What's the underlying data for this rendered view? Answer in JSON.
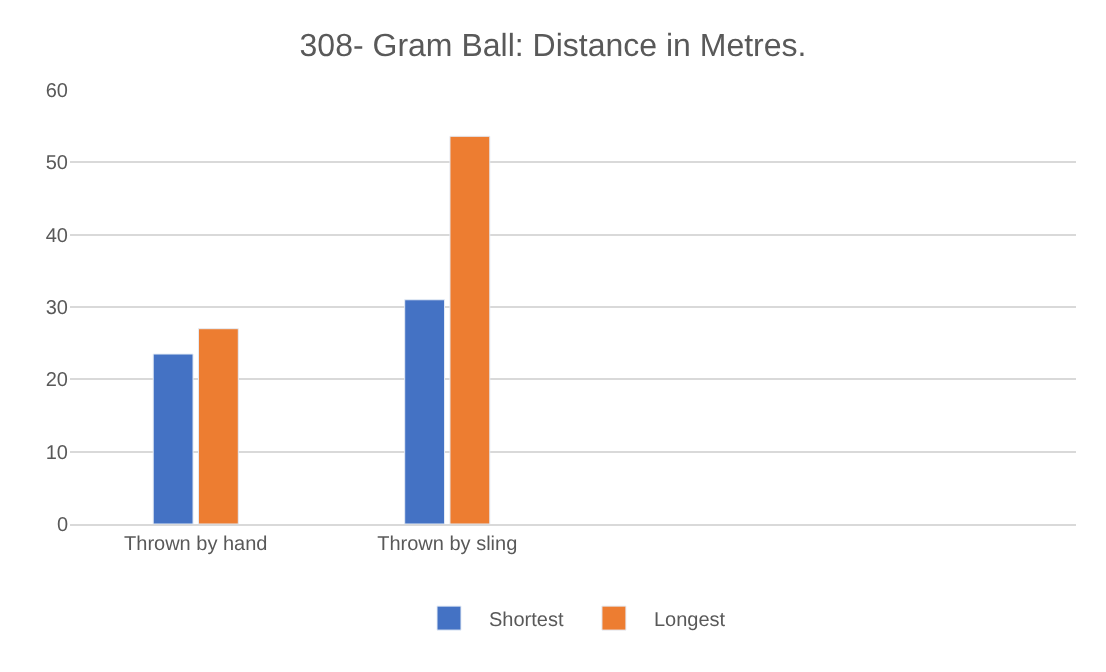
{
  "chart_data": {
    "type": "bar",
    "title": "308- Gram Ball: Distance in Metres.",
    "categories": [
      "Thrown by hand",
      "Thrown by sling",
      null,
      null
    ],
    "series": [
      {
        "name": "Shortest",
        "color": "#4472c4",
        "values": [
          23.5,
          31.0,
          null,
          null
        ]
      },
      {
        "name": "Longest",
        "color": "#ed7d31",
        "values": [
          27.0,
          53.6,
          null,
          null
        ]
      }
    ],
    "ylim": [
      0,
      60
    ],
    "yticks": [
      0,
      10,
      20,
      30,
      40,
      50,
      60
    ],
    "grid": "y",
    "legend": "bottom"
  }
}
